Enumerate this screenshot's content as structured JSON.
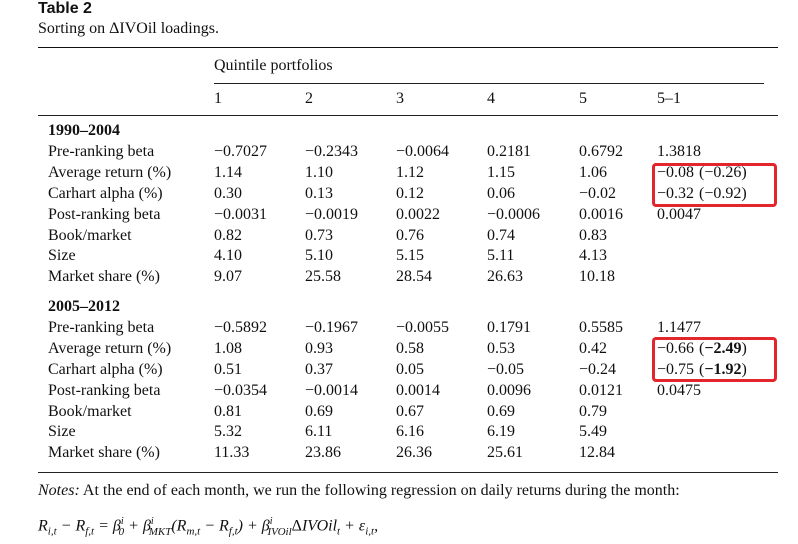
{
  "table": {
    "label": "Table 2",
    "caption": "Sorting on ΔIVOil loadings.",
    "group_header": "Quintile portfolios",
    "columns": [
      "1",
      "2",
      "3",
      "4",
      "5",
      "5–1"
    ],
    "panels": [
      {
        "title": "1990–2004",
        "rows": [
          {
            "label": "Pre-ranking beta",
            "values": [
              "−0.7027",
              "−0.2343",
              "−0.0064",
              "0.2181",
              "0.6792",
              "1.3818"
            ]
          },
          {
            "label": "Average return (%)",
            "values": [
              "1.14",
              "1.10",
              "1.12",
              "1.15",
              "1.06"
            ],
            "diff": "−0.08",
            "tstat": "(−0.26)"
          },
          {
            "label": "Carhart alpha (%)",
            "values": [
              "0.30",
              "0.13",
              "0.12",
              "0.06",
              "−0.02"
            ],
            "diff": "−0.32",
            "tstat": "(−0.92)"
          },
          {
            "label": "Post-ranking beta",
            "values": [
              "−0.0031",
              "−0.0019",
              "0.0022",
              "−0.0006",
              "0.0016",
              "0.0047"
            ]
          },
          {
            "label": "Book/market",
            "values": [
              "0.82",
              "0.73",
              "0.76",
              "0.74",
              "0.83"
            ]
          },
          {
            "label": "Size",
            "values": [
              "4.10",
              "5.10",
              "5.15",
              "5.11",
              "4.13"
            ]
          },
          {
            "label": "Market share (%)",
            "values": [
              "9.07",
              "25.58",
              "28.54",
              "26.63",
              "10.18"
            ]
          }
        ]
      },
      {
        "title": "2005–2012",
        "rows": [
          {
            "label": "Pre-ranking beta",
            "values": [
              "−0.5892",
              "−0.1967",
              "−0.0055",
              "0.1791",
              "0.5585",
              "1.1477"
            ]
          },
          {
            "label": "Average return (%)",
            "values": [
              "1.08",
              "0.93",
              "0.58",
              "0.53",
              "0.42"
            ],
            "diff": "−0.66",
            "tstat": "(−2.49)",
            "tstat_bold": "−2.49"
          },
          {
            "label": "Carhart alpha (%)",
            "values": [
              "0.51",
              "0.37",
              "0.05",
              "−0.05",
              "−0.24"
            ],
            "diff": "−0.75",
            "tstat": "(−1.92)",
            "tstat_bold": "−1.92"
          },
          {
            "label": "Post-ranking beta",
            "values": [
              "−0.0354",
              "−0.0014",
              "0.0014",
              "0.0096",
              "0.0121",
              "0.0475"
            ]
          },
          {
            "label": "Book/market",
            "values": [
              "0.81",
              "0.69",
              "0.67",
              "0.69",
              "0.79"
            ]
          },
          {
            "label": "Size",
            "values": [
              "5.32",
              "6.11",
              "6.16",
              "6.19",
              "5.49"
            ]
          },
          {
            "label": "Market share (%)",
            "values": [
              "11.33",
              "23.86",
              "26.36",
              "25.61",
              "12.84"
            ]
          }
        ]
      }
    ]
  },
  "notes": {
    "label": "Notes:",
    "text": "At the end of each month, we run the following regression on daily returns during the month:"
  },
  "highlight_color": "#e3262b"
}
